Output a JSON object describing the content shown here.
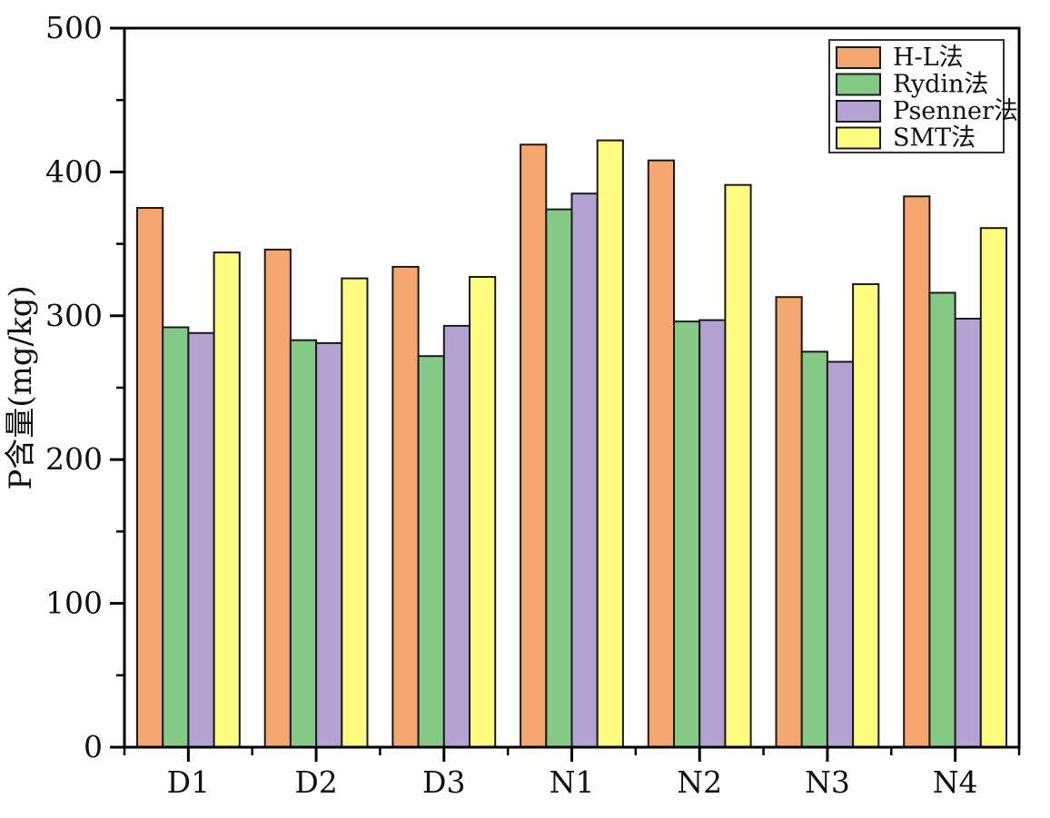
{
  "chart_data": {
    "type": "bar",
    "title": "",
    "xlabel": "",
    "ylabel": "P含量(mg/kg)",
    "ylim": [
      0,
      500
    ],
    "y_major_ticks": [
      0,
      100,
      200,
      300,
      400,
      500
    ],
    "y_minor_ticks": [
      50,
      150,
      250,
      350,
      450
    ],
    "grid": false,
    "legend_position": "top-right",
    "frame": "full-box",
    "categories": [
      "D1",
      "D2",
      "D3",
      "N1",
      "N2",
      "N3",
      "N4"
    ],
    "series": [
      {
        "name": "H-L法",
        "color": "#F5A76F",
        "values": [
          375,
          346,
          334,
          419,
          408,
          313,
          383
        ]
      },
      {
        "name": "Rydin法",
        "color": "#84C985",
        "values": [
          292,
          283,
          272,
          374,
          296,
          275,
          316
        ]
      },
      {
        "name": "Psenner法",
        "color": "#B2A3D2",
        "values": [
          288,
          281,
          293,
          385,
          297,
          268,
          298
        ]
      },
      {
        "name": "SMT法",
        "color": "#FCFC7E",
        "values": [
          344,
          326,
          327,
          422,
          391,
          322,
          361
        ]
      }
    ],
    "bar_edge_color": "#1a1a1a",
    "axis_color": "#000000"
  }
}
